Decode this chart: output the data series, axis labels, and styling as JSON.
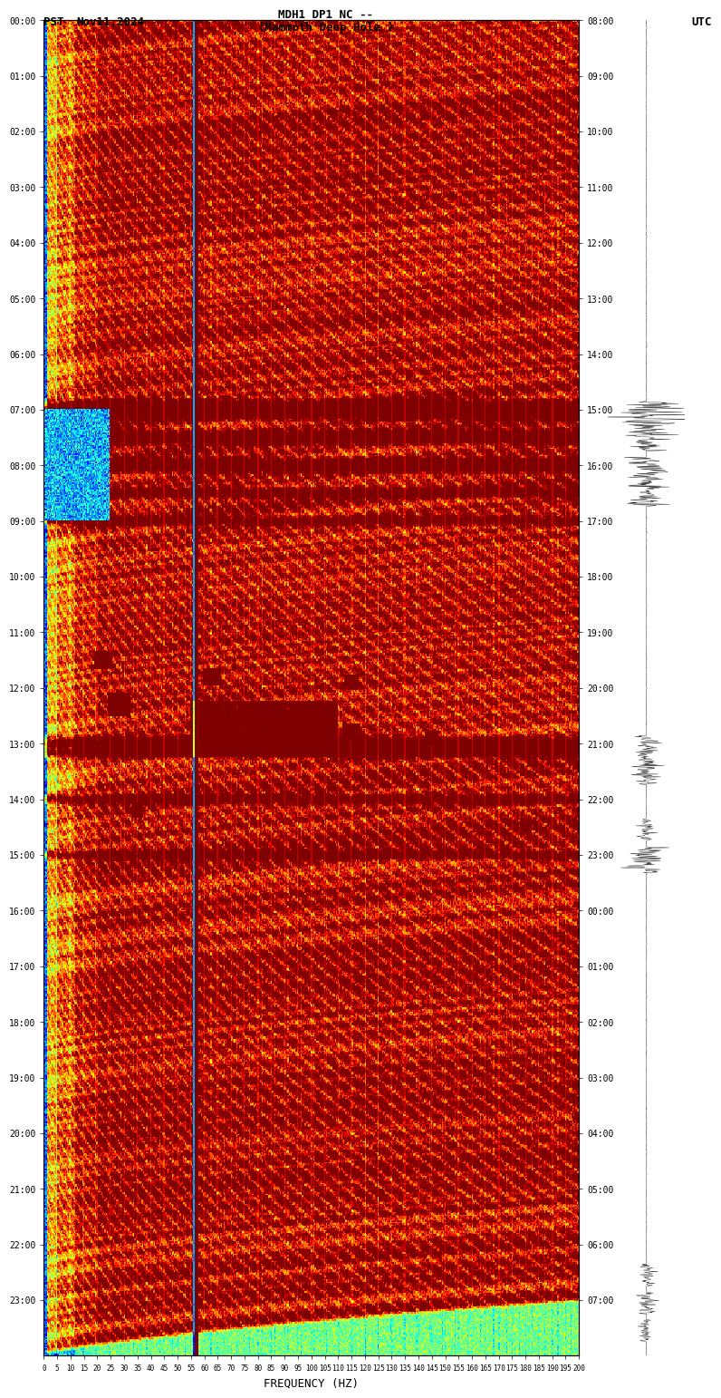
{
  "title_line1": "MDH1 DP1 NC --",
  "title_line2": "(Mammoth Deep Hole )",
  "label_left": "PST",
  "label_date": "Nov11,2024",
  "label_right": "UTC",
  "xlabel": "FREQUENCY (HZ)",
  "freq_ticks": [
    0,
    5,
    10,
    15,
    20,
    25,
    30,
    35,
    40,
    45,
    50,
    55,
    60,
    65,
    70,
    75,
    80,
    85,
    90,
    95,
    100,
    105,
    110,
    115,
    120,
    125,
    130,
    135,
    140,
    145,
    150,
    155,
    160,
    165,
    170,
    175,
    180,
    185,
    190,
    195,
    200
  ],
  "pst_times": [
    "00:00",
    "01:00",
    "02:00",
    "03:00",
    "04:00",
    "05:00",
    "06:00",
    "07:00",
    "08:00",
    "09:00",
    "10:00",
    "11:00",
    "12:00",
    "13:00",
    "14:00",
    "15:00",
    "16:00",
    "17:00",
    "18:00",
    "19:00",
    "20:00",
    "21:00",
    "22:00",
    "23:00"
  ],
  "utc_times": [
    "08:00",
    "09:00",
    "10:00",
    "11:00",
    "12:00",
    "13:00",
    "14:00",
    "15:00",
    "16:00",
    "17:00",
    "18:00",
    "19:00",
    "20:00",
    "21:00",
    "22:00",
    "23:00",
    "00:00",
    "01:00",
    "02:00",
    "03:00",
    "04:00",
    "05:00",
    "06:00",
    "07:00"
  ],
  "dark_red_line_freq": 57,
  "fig_bg": "#ffffff",
  "colormap": "jet",
  "seed": 42,
  "n_freq": 500,
  "n_time": 960
}
